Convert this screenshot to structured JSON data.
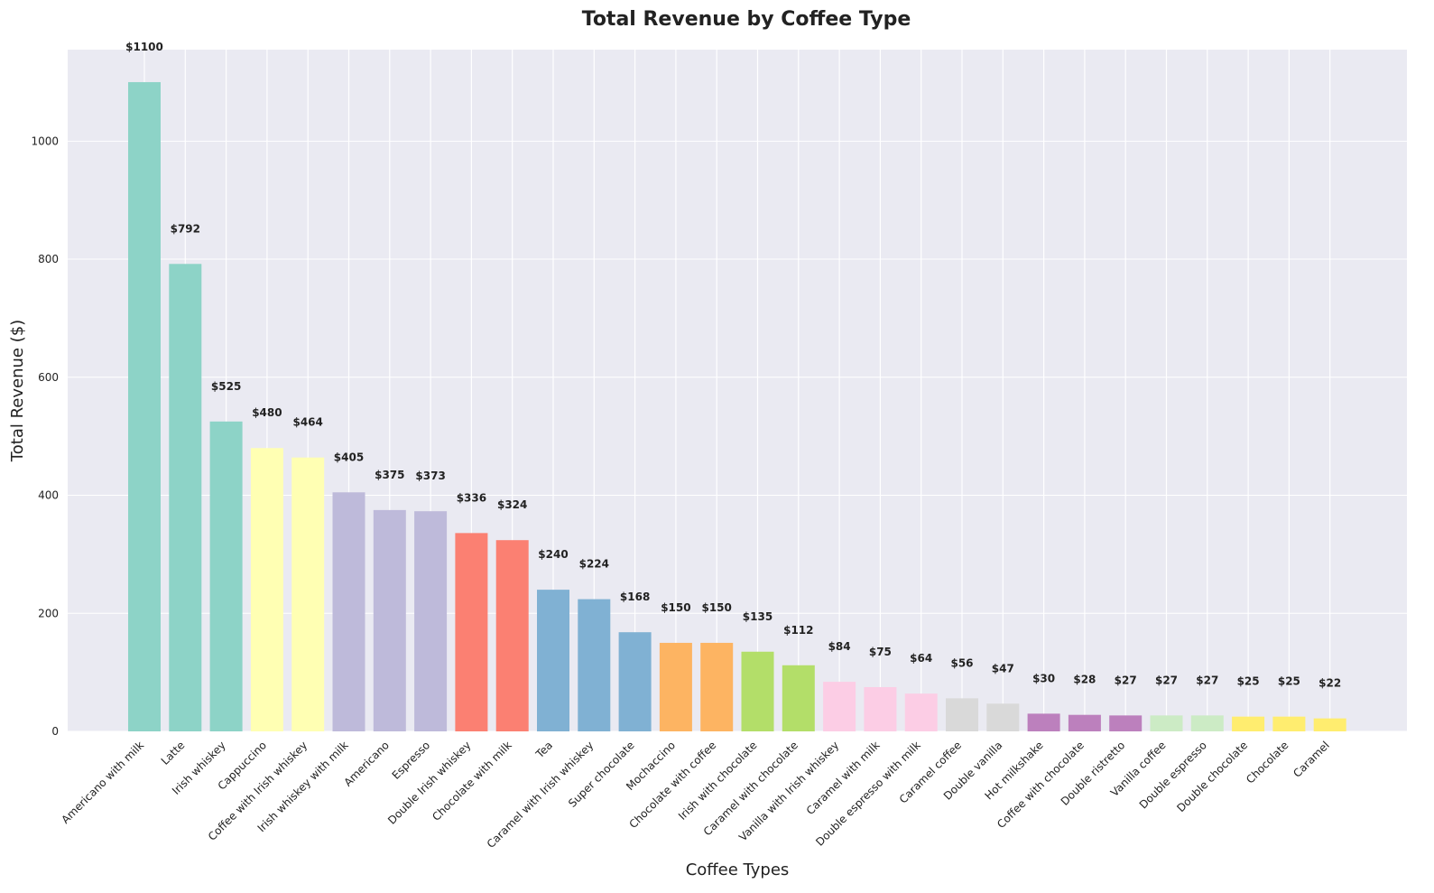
{
  "chart_data": {
    "type": "bar",
    "title": "Total Revenue by Coffee Type",
    "xlabel": "Coffee Types",
    "ylabel": "Total Revenue ($)",
    "ylim": [
      0,
      1155
    ],
    "yticks": [
      0,
      200,
      400,
      600,
      800,
      1000
    ],
    "grid": true,
    "value_prefix": "$",
    "background_color": "#eaeaf2",
    "categories": [
      "Americano with milk",
      "Latte",
      "Irish whiskey",
      "Cappuccino",
      "Coffee with Irish whiskey",
      "Irish whiskey with milk",
      "Americano",
      "Espresso",
      "Double Irish whiskey",
      "Chocolate with milk",
      "Tea",
      "Caramel with Irish whiskey",
      "Super chocolate",
      "Mochaccino",
      "Chocolate with coffee",
      "Irish with chocolate",
      "Caramel with chocolate",
      "Vanilla with Irish whiskey",
      "Caramel with milk",
      "Double espresso with milk",
      "Caramel coffee",
      "Double vanilla",
      "Hot milkshake",
      "Coffee with chocolate",
      "Double ristretto",
      "Vanilla coffee",
      "Double espresso",
      "Double chocolate",
      "Chocolate",
      "Caramel"
    ],
    "values": [
      1100,
      792,
      525,
      480,
      464,
      405,
      375,
      373,
      336,
      324,
      240,
      224,
      168,
      150,
      150,
      135,
      112,
      84,
      75,
      64,
      56,
      47,
      30,
      28,
      27,
      27,
      27,
      25,
      25,
      22
    ],
    "colors": [
      "#8dd3c7",
      "#8dd3c7",
      "#8dd3c7",
      "#ffffb3",
      "#ffffb3",
      "#bebada",
      "#bebada",
      "#bebada",
      "#fb8072",
      "#fb8072",
      "#80b1d3",
      "#80b1d3",
      "#80b1d3",
      "#fdb462",
      "#fdb462",
      "#b3de69",
      "#b3de69",
      "#fccde5",
      "#fccde5",
      "#fccde5",
      "#d9d9d9",
      "#d9d9d9",
      "#bc80bd",
      "#bc80bd",
      "#bc80bd",
      "#ccebc5",
      "#ccebc5",
      "#ffed6f",
      "#ffed6f",
      "#ffed6f"
    ]
  }
}
